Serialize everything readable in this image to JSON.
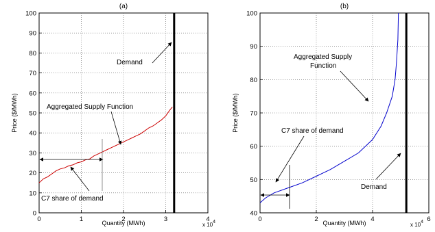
{
  "chart_data": [
    {
      "type": "line",
      "title": "(a)",
      "xlabel": "Quantity (MWh)",
      "ylabel": "Price ($/MWh)",
      "x_multiplier": "x 10",
      "x_multiplier_exp": "4",
      "xlim": [
        0,
        4
      ],
      "ylim": [
        0,
        100
      ],
      "xticks": [
        0,
        1,
        2,
        3,
        4
      ],
      "yticks": [
        0,
        10,
        20,
        30,
        40,
        50,
        60,
        70,
        80,
        90,
        100
      ],
      "grid": true,
      "series": [
        {
          "role": "supply",
          "color": "#cc0000",
          "x": [
            0,
            0.1,
            0.2,
            0.3,
            0.4,
            0.5,
            0.6,
            0.7,
            0.8,
            0.9,
            1.0,
            1.1,
            1.2,
            1.3,
            1.4,
            1.5,
            1.6,
            1.7,
            1.8,
            1.9,
            2.0,
            2.1,
            2.2,
            2.3,
            2.4,
            2.5,
            2.6,
            2.7,
            2.8,
            2.9,
            3.0,
            3.1,
            3.16
          ],
          "y": [
            15,
            17,
            18,
            19.5,
            21,
            22,
            22.5,
            23.5,
            24,
            25,
            25.5,
            26.5,
            27,
            28.5,
            29.5,
            30.5,
            31.5,
            32.5,
            33.5,
            34.5,
            35.5,
            36.5,
            37.5,
            38.5,
            39.5,
            41,
            42.5,
            43.5,
            45,
            46.5,
            48.5,
            51.5,
            53
          ]
        },
        {
          "role": "demand",
          "color": "#000000",
          "x": [
            3.2,
            3.2
          ],
          "y": [
            0,
            100
          ]
        }
      ],
      "annotations": {
        "demand": "Demand",
        "supply": "Aggregated Supply Function",
        "share": "C7 share of demand"
      }
    },
    {
      "type": "line",
      "title": "(b)",
      "xlabel": "Quantity (MWh)",
      "ylabel": "Price ($/MWh)",
      "x_multiplier": "x 10",
      "x_multiplier_exp": "4",
      "xlim": [
        0,
        6
      ],
      "ylim": [
        40,
        100
      ],
      "xticks": [
        0,
        2,
        4,
        6
      ],
      "yticks": [
        40,
        50,
        60,
        70,
        80,
        90,
        100
      ],
      "grid": true,
      "series": [
        {
          "role": "supply",
          "color": "#0000cc",
          "x": [
            0,
            0.2,
            0.5,
            1.0,
            1.5,
            2.0,
            2.5,
            3.0,
            3.5,
            4.0,
            4.3,
            4.5,
            4.7,
            4.8,
            4.85,
            4.9,
            4.92
          ],
          "y": [
            43,
            44.5,
            46,
            47.5,
            49,
            51,
            53,
            55.5,
            58,
            62,
            66,
            70,
            75,
            80,
            85,
            92,
            100
          ]
        },
        {
          "role": "demand",
          "color": "#000000",
          "x": [
            5.2,
            5.2
          ],
          "y": [
            40,
            100
          ]
        }
      ],
      "annotations": {
        "supply_line1": "Aggregated Supply",
        "supply_line2": "Function",
        "share": "C7 share of demand",
        "demand": "Demand"
      }
    }
  ]
}
